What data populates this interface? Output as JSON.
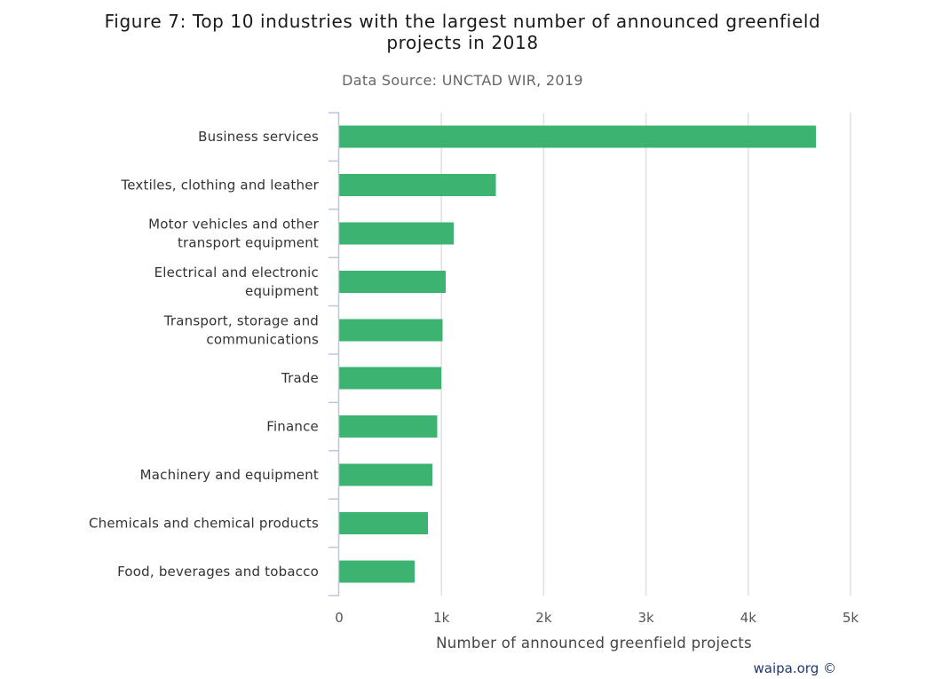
{
  "chart_data": {
    "type": "bar",
    "orientation": "horizontal",
    "title_lines": [
      "Figure 7: Top 10 industries with the largest number of announced greenfield",
      "projects in 2018"
    ],
    "subtitle": "Data Source: UNCTAD WIR, 2019",
    "xlabel": "Number of announced greenfield projects",
    "ylabel": "",
    "xlim": [
      0,
      5000
    ],
    "x_ticks": [
      0,
      1000,
      2000,
      3000,
      4000,
      5000
    ],
    "x_tick_labels": [
      "0",
      "1k",
      "2k",
      "3k",
      "4k",
      "5k"
    ],
    "grid": true,
    "legend": "none",
    "bar_color": "#3cb371",
    "categories": [
      [
        "Business services"
      ],
      [
        "Textiles, clothing and leather"
      ],
      [
        "Motor vehicles and other",
        "transport equipment"
      ],
      [
        "Electrical and electronic",
        "equipment"
      ],
      [
        "Transport, storage and",
        "communications"
      ],
      [
        "Trade"
      ],
      [
        "Finance"
      ],
      [
        "Machinery and equipment"
      ],
      [
        "Chemicals and chemical products"
      ],
      [
        "Food, beverages and tobacco"
      ]
    ],
    "values": [
      4660,
      1530,
      1120,
      1040,
      1010,
      1000,
      960,
      910,
      870,
      740
    ]
  },
  "credit": "waipa.org ©"
}
